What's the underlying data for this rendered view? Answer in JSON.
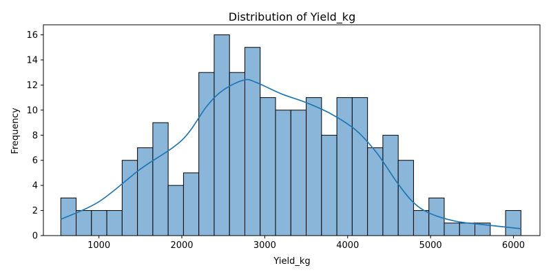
{
  "chart_data": {
    "type": "bar",
    "title": "Distribution of Yield_kg",
    "xlabel": "Yield_kg",
    "ylabel": "Frequency",
    "xlim": [
      330,
      6320
    ],
    "ylim": [
      0,
      16.8
    ],
    "x_ticks": [
      1000,
      2000,
      3000,
      4000,
      5000,
      6000
    ],
    "y_ticks": [
      0,
      2,
      4,
      6,
      8,
      10,
      12,
      14,
      16
    ],
    "grid": false,
    "legend": "none",
    "bin_edges": [
      540,
      725,
      910,
      1095,
      1280,
      1465,
      1650,
      1835,
      2020,
      2205,
      2390,
      2575,
      2760,
      2945,
      3130,
      3315,
      3500,
      3685,
      3870,
      4055,
      4240,
      4425,
      4610,
      4795,
      4980,
      5165,
      5350,
      5535,
      5720,
      5905,
      6090
    ],
    "counts": [
      3,
      2,
      2,
      2,
      6,
      7,
      9,
      4,
      5,
      13,
      16,
      13,
      15,
      11,
      10,
      10,
      11,
      8,
      11,
      11,
      7,
      8,
      6,
      2,
      3,
      1,
      1,
      1,
      0,
      2
    ],
    "kde": {
      "x": [
        540,
        1000,
        1500,
        2000,
        2300,
        2500,
        2750,
        2900,
        3200,
        3500,
        3800,
        4100,
        4350,
        4600,
        4800,
        5000,
        5300,
        5600,
        6090
      ],
      "y": [
        1.3,
        2.7,
        5.3,
        7.6,
        10.3,
        11.6,
        12.4,
        12.2,
        11.3,
        10.6,
        9.7,
        8.4,
        6.6,
        4.2,
        2.6,
        1.75,
        1.15,
        0.9,
        0.55
      ]
    },
    "colors": {
      "bar_fill": "#89b6d9",
      "bar_edge": "#000000",
      "kde_line": "#1f77b4"
    }
  }
}
